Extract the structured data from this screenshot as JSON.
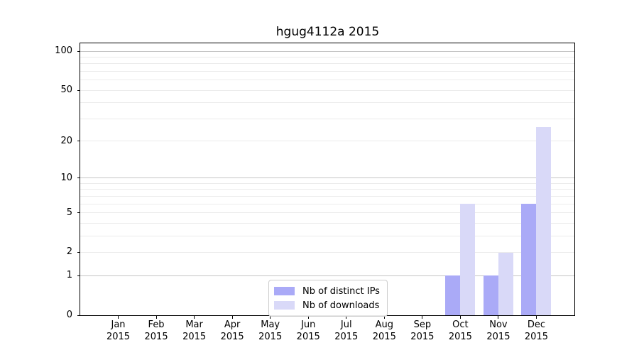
{
  "chart_data": {
    "type": "bar",
    "title": "hgug4112a 2015",
    "categories": [
      "Jan",
      "Feb",
      "Mar",
      "Apr",
      "May",
      "Jun",
      "Jul",
      "Aug",
      "Sep",
      "Oct",
      "Nov",
      "Dec"
    ],
    "category_year": "2015",
    "series": [
      {
        "name": "Nb of distinct IPs",
        "color": "#aaaaf7",
        "values": [
          0,
          0,
          0,
          0,
          0,
          0,
          0,
          0,
          0,
          1,
          1,
          6
        ]
      },
      {
        "name": "Nb of downloads",
        "color": "#d9d9f8",
        "values": [
          0,
          0,
          0,
          0,
          0,
          0,
          0,
          0,
          0,
          6,
          2,
          26
        ]
      }
    ],
    "xlabel": "",
    "ylabel": "",
    "yscale": "log1p",
    "ylim": [
      0,
      115
    ],
    "y_ticks": [
      0,
      1,
      2,
      5,
      10,
      20,
      50,
      100
    ],
    "y_minor_gridlines": [
      3,
      4,
      6,
      7,
      8,
      9,
      30,
      40,
      60,
      70,
      80,
      90
    ],
    "y_decade_gridlines": [
      1,
      10,
      100
    ],
    "grid": true,
    "legend_position": "lower center"
  },
  "colors": {
    "decade_grid": "#c4c4c4",
    "minor_grid": "#ebebeb",
    "spine": "#000000",
    "background": "#ffffff",
    "legend_border": "#cccccc"
  }
}
